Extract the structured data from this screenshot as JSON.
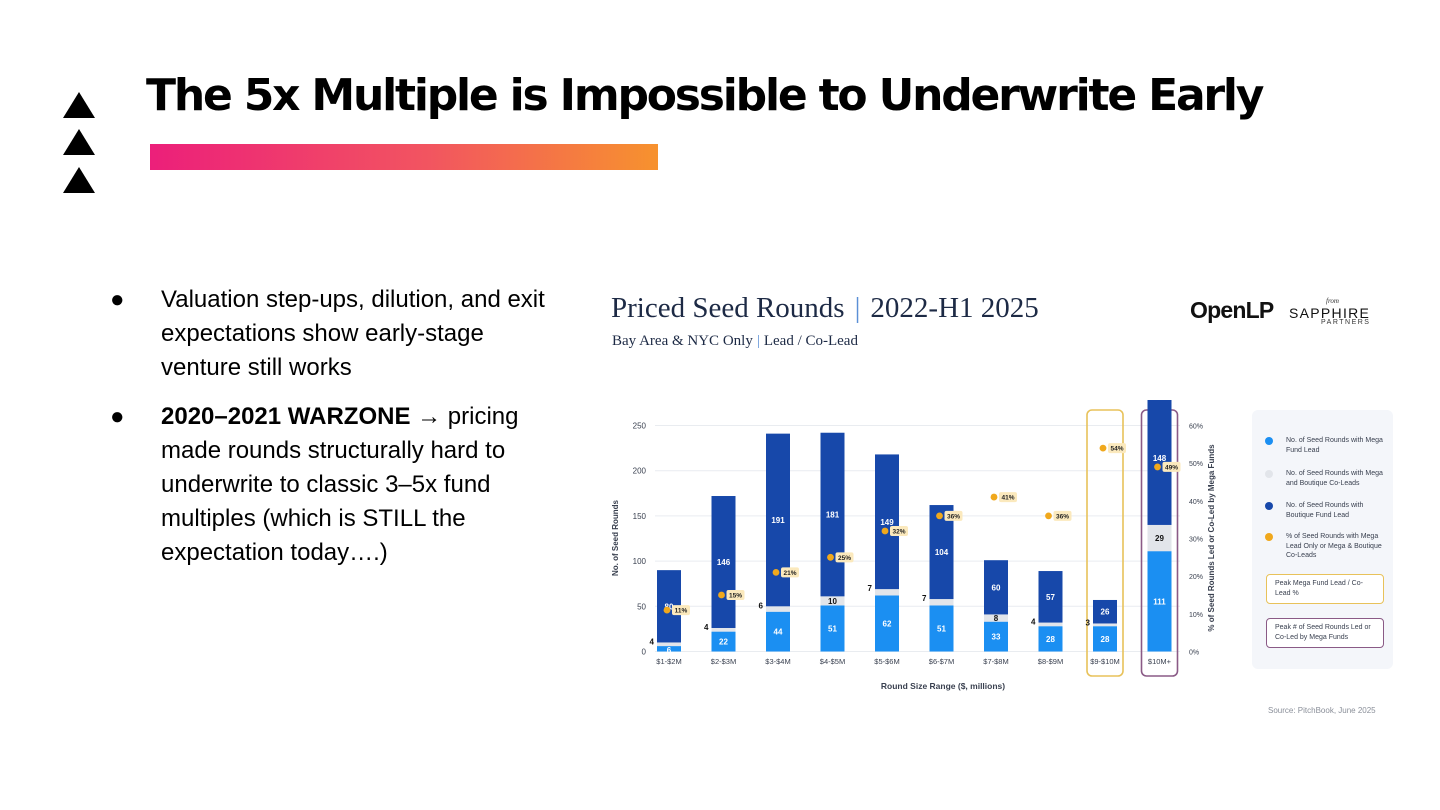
{
  "slide": {
    "title": "The 5x Multiple is Impossible to Underwrite Early",
    "bullets": [
      {
        "text": "Valuation step-ups, dilution, and exit expectations show early-stage venture still works"
      },
      {
        "bold": "2020–2021 WARZONE →",
        "text": " pricing made rounds structurally hard to underwrite to classic 3–5x fund multiples (which is STILL the expectation today….)"
      }
    ],
    "bullet_glyph": "●",
    "brand_colors": {
      "gradient_start": "#ec1f7a",
      "gradient_end": "#f7922e"
    }
  },
  "logos": {
    "openlp": "OpenLP",
    "from": "from",
    "sapphire": "SAPPHIRE",
    "partners": "PARTNERS"
  },
  "source": "Source: PitchBook, June 2025",
  "chart_data": {
    "type": "bar",
    "stacked": true,
    "title_main": "Priced Seed Rounds",
    "title_period": "2022-H1 2025",
    "title_sep": "|",
    "subtitle_a": "Bay Area & NYC Only",
    "subtitle_b": "Lead / Co-Lead",
    "xlabel": "Round Size Range ($, millions)",
    "ylabel": "No. of Seed Rounds",
    "y2label": "% of Seed Rounds Led or Co-Led by Mega Funds",
    "ylim": [
      0,
      250
    ],
    "yticks": [
      0,
      50,
      100,
      150,
      200,
      250
    ],
    "y2lim": [
      0,
      60
    ],
    "y2ticks": [
      "0%",
      "10%",
      "20%",
      "30%",
      "40%",
      "50%",
      "60%"
    ],
    "categories": [
      "$1-$2M",
      "$2-$3M",
      "$3-$4M",
      "$4-$5M",
      "$5-$6M",
      "$6-$7M",
      "$7-$8M",
      "$8-$9M",
      "$9-$10M",
      "$10M+"
    ],
    "series": [
      {
        "name": "No. of Seed Rounds with Mega Fund Lead",
        "color": "#1b8ff2",
        "values": [
          6,
          22,
          44,
          51,
          62,
          51,
          33,
          28,
          28,
          111
        ]
      },
      {
        "name": "No. of Seed Rounds with Mega and Boutique Co-Leads",
        "color": "#e2e5ea",
        "values": [
          4,
          4,
          6,
          10,
          7,
          7,
          8,
          4,
          3,
          29
        ]
      },
      {
        "name": "No. of Seed Rounds with Boutique Fund Lead",
        "color": "#1748aa",
        "values": [
          80,
          146,
          191,
          181,
          149,
          104,
          60,
          57,
          26,
          148
        ]
      },
      {
        "name": "% of Seed Rounds with Mega Lead Only or Mega & Boutique Co-Leads",
        "color": "#f0a81c",
        "type": "scatter",
        "values": [
          11,
          15,
          21,
          25,
          32,
          36,
          41,
          36,
          54,
          49
        ],
        "labels": [
          "11%",
          "15%",
          "21%",
          "25%",
          "32%",
          "36%",
          "41%",
          "36%",
          "54%",
          "49%"
        ]
      }
    ],
    "highlights": [
      {
        "category": "$9-$10M",
        "name": "Peak Mega Fund Lead / Co-Lead %",
        "color": "#e8c25a"
      },
      {
        "category": "$10M+",
        "name": "Peak # of Seed Rounds Led or Co-Led by Mega Funds",
        "color": "#8a5a86"
      }
    ],
    "legend_position": "right",
    "grid": true
  }
}
